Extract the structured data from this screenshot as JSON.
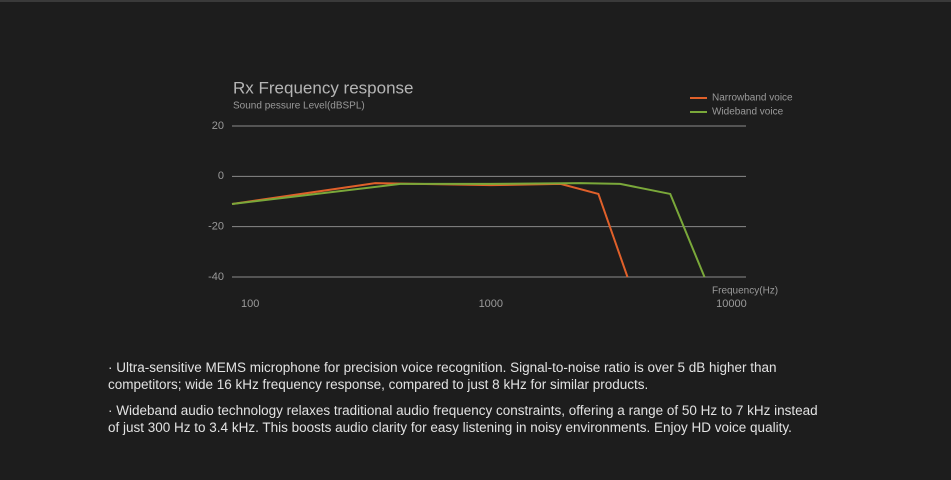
{
  "chart_data": {
    "type": "line",
    "title": "Rx Frequency response",
    "subtitle": "Sound pessure Level(dBSPL)",
    "x_label": "Frequency(Hz)",
    "xscale": "log",
    "xlim": [
      84,
      11500
    ],
    "xticks": [
      100,
      1000,
      10000
    ],
    "ylim": [
      -40,
      20
    ],
    "yticks": [
      20,
      0,
      -20,
      -40
    ],
    "grid": true,
    "legend": "upper right",
    "series": [
      {
        "name": "Narrowband voice",
        "color": "#e0602a",
        "x": [
          84,
          331,
          1000,
          1950,
          2800,
          3700
        ],
        "values": [
          -11,
          -2.7,
          -3.5,
          -3,
          -7,
          -40
        ]
      },
      {
        "name": "Wideband voice",
        "color": "#7aa83a",
        "x": [
          84,
          421,
          1000,
          2350,
          3450,
          5570,
          7730
        ],
        "values": [
          -11,
          -3,
          -3,
          -2.7,
          -3,
          -7,
          -40
        ]
      }
    ]
  },
  "bullets": [
    "· Ultra-sensitive MEMS microphone for precision voice recognition. Signal-to-noise ratio is over 5 dB higher than competitors; wide 16 kHz frequency response, compared to just 8 kHz for similar products.",
    "· Wideband audio technology relaxes traditional audio frequency constraints, offering a range of 50 Hz to 7 kHz instead of just 300 Hz to 3.4 kHz. This boosts audio clarity for easy listening in noisy environments. Enjoy HD voice quality."
  ]
}
